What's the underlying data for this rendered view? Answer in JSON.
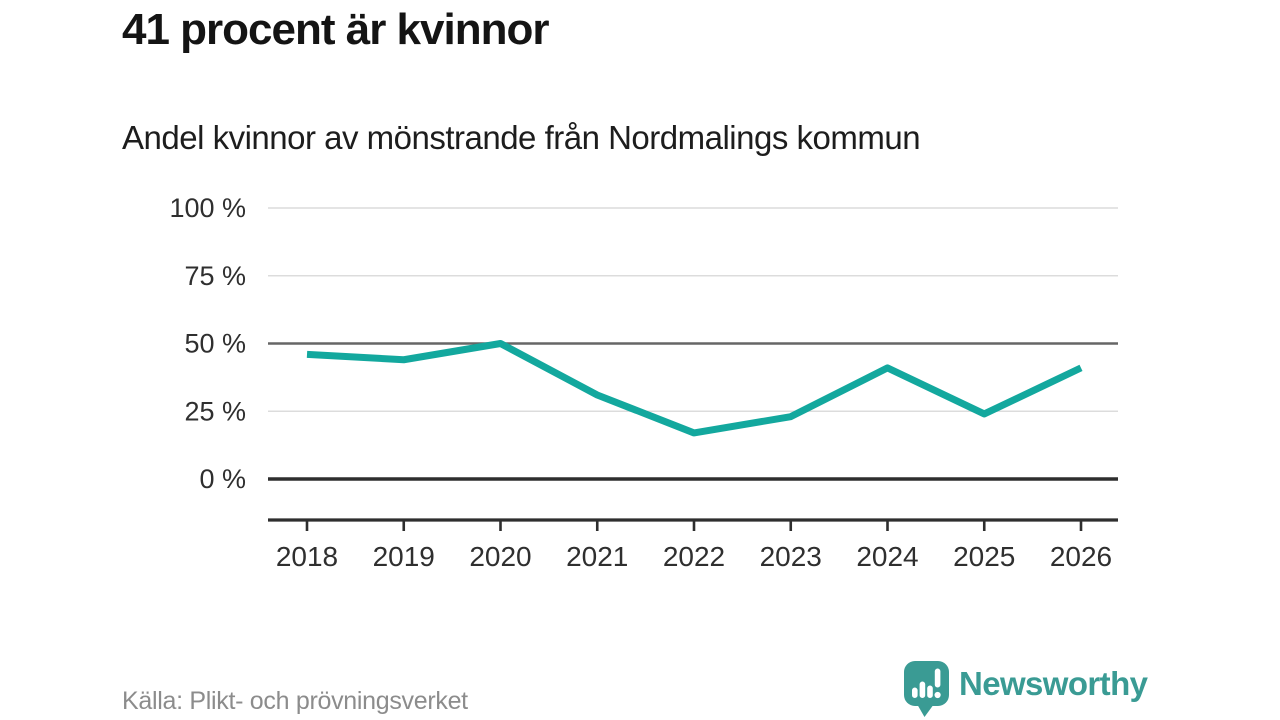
{
  "header": {
    "title": "41 procent är kvinnor",
    "subtitle": "Andel kvinnor av mönstrande från Nordmalings kommun"
  },
  "chart_data": {
    "type": "line",
    "x": [
      2018,
      2019,
      2020,
      2021,
      2022,
      2023,
      2024,
      2025,
      2026
    ],
    "series": [
      {
        "name": "Andel kvinnor av mönstrande",
        "values": [
          46,
          44,
          50,
          31,
          17,
          23,
          41,
          24,
          41
        ]
      }
    ],
    "title": "41 procent är kvinnor",
    "subtitle": "Andel kvinnor av mönstrande från Nordmalings kommun",
    "xlabel": "",
    "ylabel": "",
    "ylim": [
      0,
      100
    ],
    "yticks": [
      100,
      75,
      50,
      25,
      0
    ],
    "ytick_labels": [
      "100 %",
      "75 %",
      "50 %",
      "25 %",
      "0 %"
    ],
    "emphasized_yticks": [
      50,
      0
    ],
    "grid": true,
    "legend_position": "none",
    "line_color": "#13a89e"
  },
  "footer": {
    "source": "Källa: Plikt- och prövningsverket",
    "brand": "Newsworthy"
  },
  "icons": {
    "logo": "newsworthy-speech-bubble-barchart-icon"
  },
  "colors": {
    "accent_teal": "#13a89e",
    "brand_teal": "#3a9b94",
    "title_text": "#141414",
    "tick_text": "#2f2f2f",
    "gridline_light": "#dcdcdc",
    "gridline_mid": "#666666",
    "axis_dark": "#2e2e2e",
    "source_text": "#8c8c8c",
    "background": "#ffffff"
  }
}
